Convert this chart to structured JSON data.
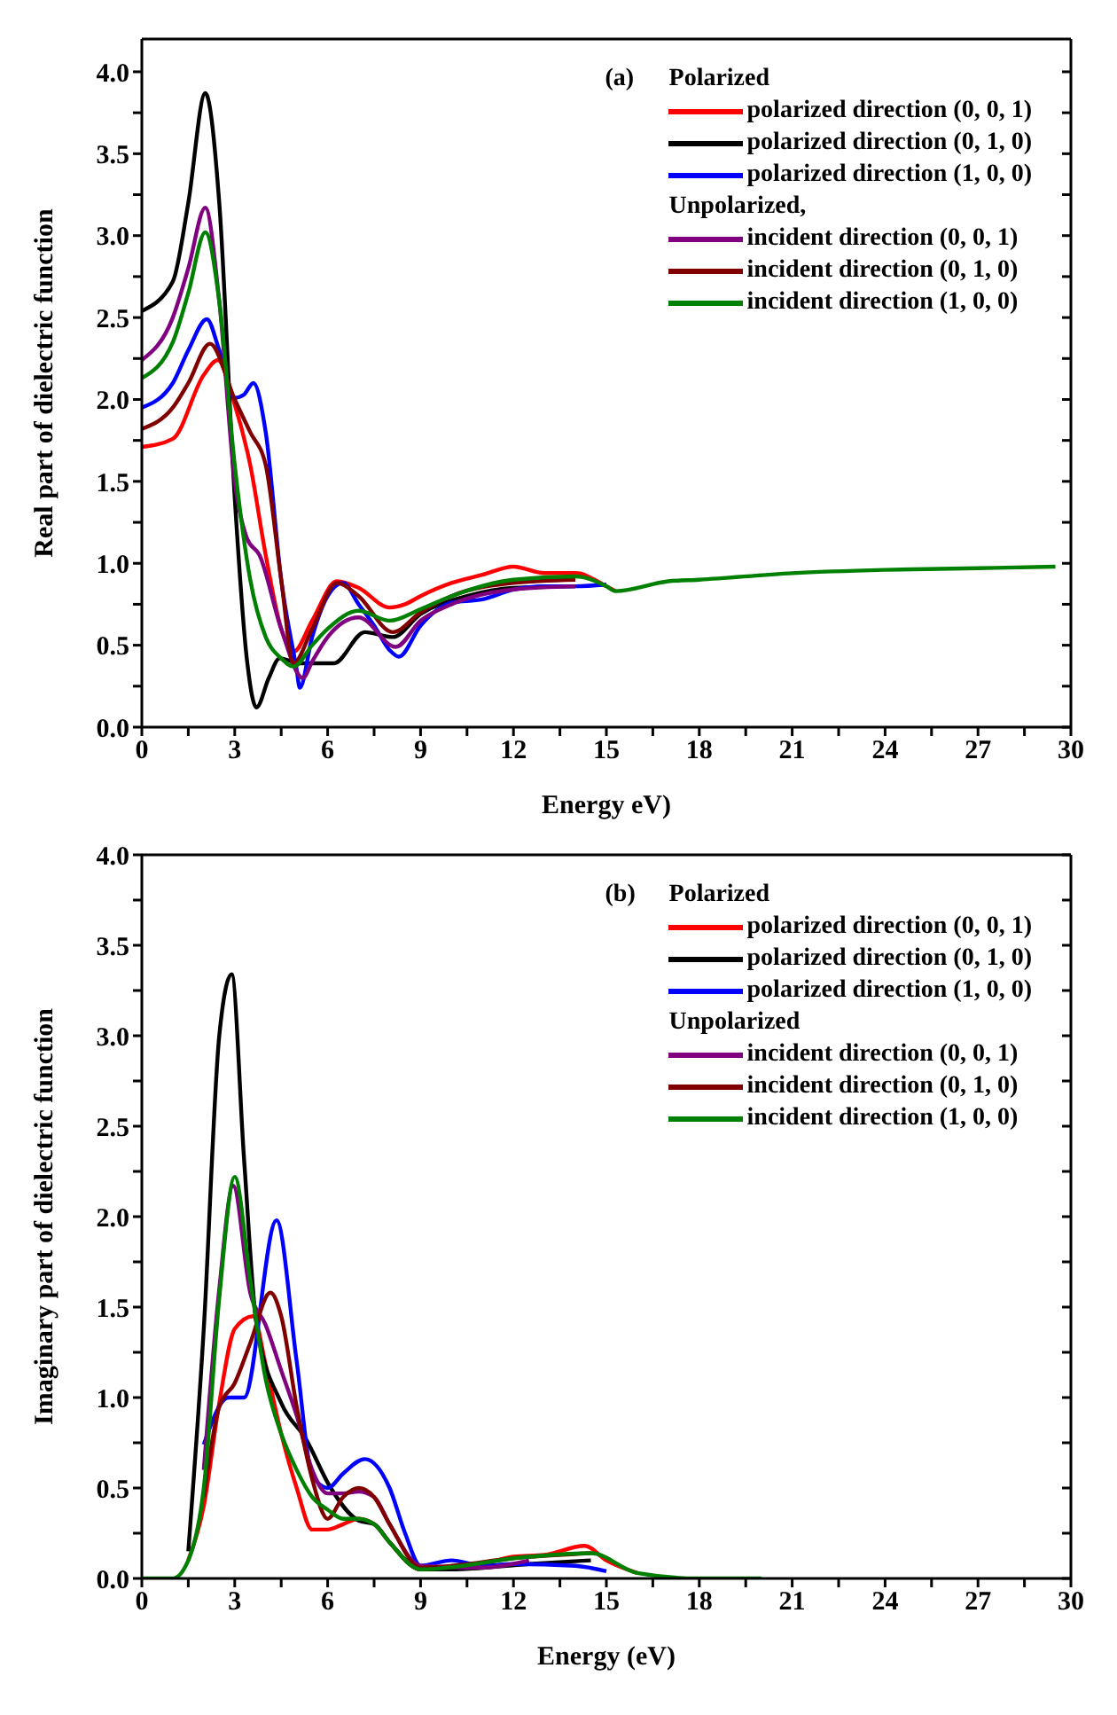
{
  "chart_data": [
    {
      "type": "line",
      "xlabel": "Energy eV)",
      "ylabel": "Real part of dielectric function",
      "legend_title": "Polarized",
      "annotations": [
        "(a)",
        "Unpolarized,"
      ],
      "legend": "top right",
      "xlim": [
        0,
        30
      ],
      "ylim": [
        0,
        4.2
      ],
      "xticks": [
        0,
        {
          "value": 1.5,
          "label": null
        },
        3,
        {
          "value": 4.5,
          "label": null
        },
        6,
        {
          "value": 7.5,
          "label": null
        },
        9,
        {
          "value": 10.5,
          "label": null
        },
        12,
        {
          "value": 13.5,
          "label": null
        },
        15,
        {
          "value": 16.5,
          "label": null
        },
        18,
        {
          "value": 19.5,
          "label": null
        },
        21,
        {
          "value": 22.5,
          "label": null
        },
        24,
        {
          "value": 25.5,
          "label": null
        },
        27,
        {
          "value": 28.5,
          "label": null
        },
        30
      ],
      "yticks": [
        {
          "value": 0,
          "label": "0.0"
        },
        {
          "value": 0.25,
          "label": null
        },
        {
          "value": 0.5,
          "label": "0.5"
        },
        {
          "value": 0.75,
          "label": null
        },
        {
          "value": 1,
          "label": "1.0"
        },
        {
          "value": 1.25,
          "label": null
        },
        {
          "value": 1.5,
          "label": "1.5"
        },
        {
          "value": 1.75,
          "label": null
        },
        {
          "value": 2,
          "label": "2.0"
        },
        {
          "value": 2.25,
          "label": null
        },
        {
          "value": 2.5,
          "label": "2.5"
        },
        {
          "value": 2.75,
          "label": null
        },
        {
          "value": 3,
          "label": "3.0"
        },
        {
          "value": 3.25,
          "label": null
        },
        {
          "value": 3.5,
          "label": "3.5"
        },
        {
          "value": 3.75,
          "label": null
        },
        {
          "value": 4,
          "label": "4.0"
        }
      ],
      "series": [
        {
          "name": "polarized direction (0, 0, 1)",
          "color": "#ff0000",
          "x": [
            0,
            1,
            2,
            2.45,
            3,
            3.5,
            4,
            4.5,
            4.9,
            5.5,
            6.3,
            7,
            8,
            8.5,
            9,
            10,
            11,
            12,
            13,
            14,
            15,
            15.3
          ],
          "values": [
            1.71,
            1.76,
            2.15,
            2.24,
            1.97,
            1.6,
            1.05,
            0.6,
            0.46,
            0.65,
            0.89,
            0.85,
            0.73,
            0.75,
            0.8,
            0.88,
            0.93,
            0.98,
            0.94,
            0.94,
            0.86,
            0.83
          ]
        },
        {
          "name": "polarized direction (0, 1, 0)",
          "color": "#000000",
          "x": [
            0,
            1,
            1.5,
            2.05,
            2.5,
            3,
            3.4,
            3.7,
            4.1,
            4.45,
            5.1,
            6.2,
            7.2,
            8.1,
            9,
            10.5,
            12,
            14
          ],
          "values": [
            2.54,
            2.72,
            3.2,
            3.87,
            3.2,
            1.4,
            0.4,
            0.12,
            0.3,
            0.42,
            0.39,
            0.39,
            0.58,
            0.55,
            0.69,
            0.8,
            0.85,
            0.86
          ]
        },
        {
          "name": "polarized direction (1, 0, 0)",
          "color": "#0000ff",
          "x": [
            0,
            1,
            1.5,
            2.1,
            2.5,
            3,
            3.3,
            3.6,
            4,
            4.5,
            5,
            5.1,
            5.5,
            6,
            6.5,
            7,
            7.5,
            8,
            8.3,
            9,
            10,
            11,
            12,
            13,
            14,
            15
          ],
          "values": [
            1.95,
            2.1,
            2.3,
            2.49,
            2.3,
            2.01,
            2.03,
            2.1,
            1.8,
            0.9,
            0.35,
            0.24,
            0.55,
            0.8,
            0.88,
            0.75,
            0.62,
            0.47,
            0.43,
            0.62,
            0.76,
            0.78,
            0.84,
            0.86,
            0.86,
            0.87
          ]
        },
        {
          "name": "incident direction (0, 0, 1)",
          "color": "#800080",
          "x": [
            0,
            1,
            1.5,
            2.05,
            2.5,
            3,
            3.4,
            3.8,
            4.5,
            5.2,
            5.5,
            6,
            7,
            8.2,
            9,
            10,
            12,
            14
          ],
          "values": [
            2.24,
            2.5,
            2.8,
            3.17,
            2.6,
            1.5,
            1.15,
            1.05,
            0.6,
            0.3,
            0.4,
            0.55,
            0.67,
            0.49,
            0.65,
            0.75,
            0.84,
            0.86
          ]
        },
        {
          "name": "incident direction (0, 1, 0)",
          "color": "#800000",
          "x": [
            0,
            1,
            1.5,
            2.2,
            3,
            3.5,
            4,
            4.5,
            4.9,
            5.5,
            6.3,
            7,
            8.1,
            9,
            10,
            12,
            14
          ],
          "values": [
            1.82,
            1.95,
            2.1,
            2.34,
            2.0,
            1.8,
            1.6,
            0.9,
            0.39,
            0.6,
            0.88,
            0.8,
            0.58,
            0.7,
            0.8,
            0.88,
            0.9
          ]
        },
        {
          "name": "incident direction (1, 0, 0)",
          "color": "#008000",
          "x": [
            0,
            1,
            1.5,
            2.05,
            2.5,
            3,
            3.5,
            4,
            4.5,
            4.9,
            5.5,
            6,
            7,
            8,
            9,
            10,
            12,
            14,
            15,
            15.3,
            17,
            18,
            21,
            24,
            27,
            29.5
          ],
          "values": [
            2.13,
            2.35,
            2.65,
            3.02,
            2.6,
            1.6,
            0.9,
            0.55,
            0.42,
            0.37,
            0.5,
            0.6,
            0.71,
            0.65,
            0.72,
            0.8,
            0.9,
            0.92,
            0.86,
            0.83,
            0.89,
            0.9,
            0.94,
            0.96,
            0.97,
            0.98
          ]
        }
      ]
    },
    {
      "type": "line",
      "xlabel": "Energy (eV)",
      "ylabel": "Imaginary part of dielectric function",
      "legend_title": "Polarized",
      "annotations": [
        "(b)",
        "Unpolarized"
      ],
      "legend": "top right",
      "xlim": [
        0,
        30
      ],
      "ylim": [
        0,
        4
      ],
      "xticks": [
        0,
        {
          "value": 1.5,
          "label": null
        },
        3,
        {
          "value": 4.5,
          "label": null
        },
        6,
        {
          "value": 7.5,
          "label": null
        },
        9,
        {
          "value": 10.5,
          "label": null
        },
        12,
        {
          "value": 13.5,
          "label": null
        },
        15,
        {
          "value": 16.5,
          "label": null
        },
        18,
        {
          "value": 19.5,
          "label": null
        },
        21,
        {
          "value": 22.5,
          "label": null
        },
        24,
        {
          "value": 25.5,
          "label": null
        },
        27,
        {
          "value": 28.5,
          "label": null
        },
        30
      ],
      "yticks": [
        {
          "value": 0,
          "label": "0.0"
        },
        {
          "value": 0.25,
          "label": null
        },
        {
          "value": 0.5,
          "label": "0.5"
        },
        {
          "value": 0.75,
          "label": null
        },
        {
          "value": 1,
          "label": "1.0"
        },
        {
          "value": 1.25,
          "label": null
        },
        {
          "value": 1.5,
          "label": "1.5"
        },
        {
          "value": 1.75,
          "label": null
        },
        {
          "value": 2,
          "label": "2.0"
        },
        {
          "value": 2.25,
          "label": null
        },
        {
          "value": 2.5,
          "label": "2.5"
        },
        {
          "value": 2.75,
          "label": null
        },
        {
          "value": 3,
          "label": "3.0"
        },
        {
          "value": 3.25,
          "label": null
        },
        {
          "value": 3.5,
          "label": "3.5"
        },
        {
          "value": 3.75,
          "label": null
        },
        {
          "value": 4,
          "label": "4.0"
        }
      ],
      "series": [
        {
          "name": "polarized direction (0, 0, 1)",
          "color": "#ff0000",
          "x": [
            1.5,
            2,
            2.5,
            3,
            3.6,
            4,
            4.5,
            5,
            5.5,
            6,
            6.5,
            7,
            7.5,
            8,
            9,
            10,
            11,
            12,
            13,
            14.3,
            15,
            16
          ],
          "values": [
            0.1,
            0.4,
            0.97,
            1.38,
            1.45,
            1.18,
            0.8,
            0.5,
            0.27,
            0.27,
            0.3,
            0.33,
            0.3,
            0.2,
            0.05,
            0.06,
            0.08,
            0.12,
            0.13,
            0.18,
            0.1,
            0.03
          ]
        },
        {
          "name": "polarized direction (0, 1, 0)",
          "color": "#000000",
          "x": [
            1.5,
            2,
            2.5,
            2.9,
            3.3,
            3.7,
            4.5,
            5.3,
            6.1,
            7,
            7.5,
            8,
            9,
            10,
            12.5,
            14.5
          ],
          "values": [
            0.15,
            1.38,
            3.0,
            3.34,
            2.32,
            1.41,
            0.97,
            0.77,
            0.5,
            0.32,
            0.3,
            0.2,
            0.05,
            0.05,
            0.08,
            0.1
          ]
        },
        {
          "name": "polarized direction (1, 0, 0)",
          "color": "#0000ff",
          "x": [
            2,
            2.8,
            3.3,
            4.35,
            5,
            5.5,
            6,
            6.5,
            7.2,
            8,
            8.5,
            9,
            10,
            11,
            12,
            14,
            15
          ],
          "values": [
            0.74,
            1.0,
            1.0,
            1.98,
            1.2,
            0.57,
            0.5,
            0.58,
            0.66,
            0.5,
            0.25,
            0.07,
            0.1,
            0.07,
            0.08,
            0.07,
            0.04
          ]
        },
        {
          "name": "incident direction (0, 0, 1)",
          "color": "#800080",
          "x": [
            2,
            2.5,
            2.95,
            3.5,
            4,
            4.5,
            5,
            5.5,
            6,
            6.5,
            7,
            7.5,
            8,
            9,
            11,
            12.5
          ],
          "values": [
            0.6,
            1.6,
            2.17,
            1.58,
            1.4,
            1.15,
            0.9,
            0.6,
            0.47,
            0.47,
            0.48,
            0.45,
            0.3,
            0.07,
            0.06,
            0.1
          ]
        },
        {
          "name": "incident direction (0, 1, 0)",
          "color": "#800000",
          "x": [
            2,
            2.5,
            3,
            3.5,
            4.15,
            4.5,
            5,
            5.5,
            6,
            6.5,
            7,
            7.5,
            8,
            9,
            12.5,
            14.5
          ],
          "values": [
            0.45,
            0.95,
            1.08,
            1.3,
            1.58,
            1.45,
            0.95,
            0.55,
            0.33,
            0.45,
            0.5,
            0.45,
            0.3,
            0.06,
            0.12,
            0.14
          ]
        },
        {
          "name": "incident direction (1, 0, 0)",
          "color": "#008000",
          "x": [
            0,
            1,
            1.5,
            2,
            2.5,
            3,
            3.5,
            4,
            4.5,
            5,
            5.5,
            6,
            6.5,
            7,
            7.5,
            8,
            9,
            12.5,
            14.5,
            16,
            18,
            20
          ],
          "values": [
            0,
            0,
            0.1,
            0.5,
            1.55,
            2.22,
            1.65,
            1.1,
            0.8,
            0.6,
            0.45,
            0.38,
            0.33,
            0.33,
            0.3,
            0.2,
            0.05,
            0.12,
            0.14,
            0.03,
            0,
            0
          ]
        }
      ]
    }
  ]
}
